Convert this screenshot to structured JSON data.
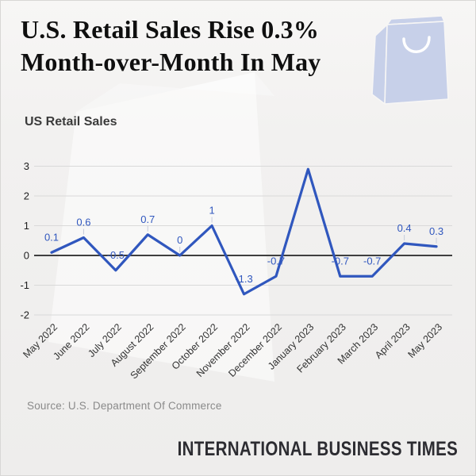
{
  "header": {
    "title_line1": "U.S. Retail Sales Rise 0.3%",
    "title_line2": "Month-over-Month In May",
    "icon": "shopping-bag-icon"
  },
  "chart_title": "US Retail Sales",
  "chart_data": {
    "type": "line",
    "title": "US Retail Sales",
    "categories": [
      "May 2022",
      "June 2022",
      "July 2022",
      "August 2022",
      "September 2022",
      "October 2022",
      "November 2022",
      "December 2022",
      "January 2023",
      "February 2023",
      "March 2023",
      "April 2023",
      "May 2023"
    ],
    "values": [
      0.1,
      0.6,
      -0.5,
      0.7,
      0,
      1,
      -1.3,
      -0.7,
      2.9,
      -0.7,
      -0.7,
      0.4,
      0.3
    ],
    "point_labels": [
      "0.1",
      "0.6",
      "-0.5",
      "0.7",
      "0",
      "1",
      "-1.3",
      "-0.7",
      "",
      "-0.7",
      "-0.7",
      "0.4",
      "0.3"
    ],
    "ylim": [
      -2,
      3
    ],
    "yticks": [
      3,
      2,
      1,
      0,
      -1,
      -2
    ],
    "grid": true,
    "legend": false,
    "xlabel": "",
    "ylabel": "",
    "line_color": "#3057BE",
    "label_color": "#3057BE"
  },
  "footer": {
    "source": "Source: U.S. Department Of Commerce",
    "brand": "INTERNATIONAL BUSINESS TIMES"
  },
  "colors": {
    "accent_blue": "#3057BE",
    "bag_fill": "#C7D0E9",
    "grid": "#D9D9D9",
    "zero_line": "#3F3F3F",
    "background": "#F0EFEE",
    "border": "#D8D7D5",
    "source_text": "#8A8A8A",
    "brand_text": "#2C2C31"
  }
}
